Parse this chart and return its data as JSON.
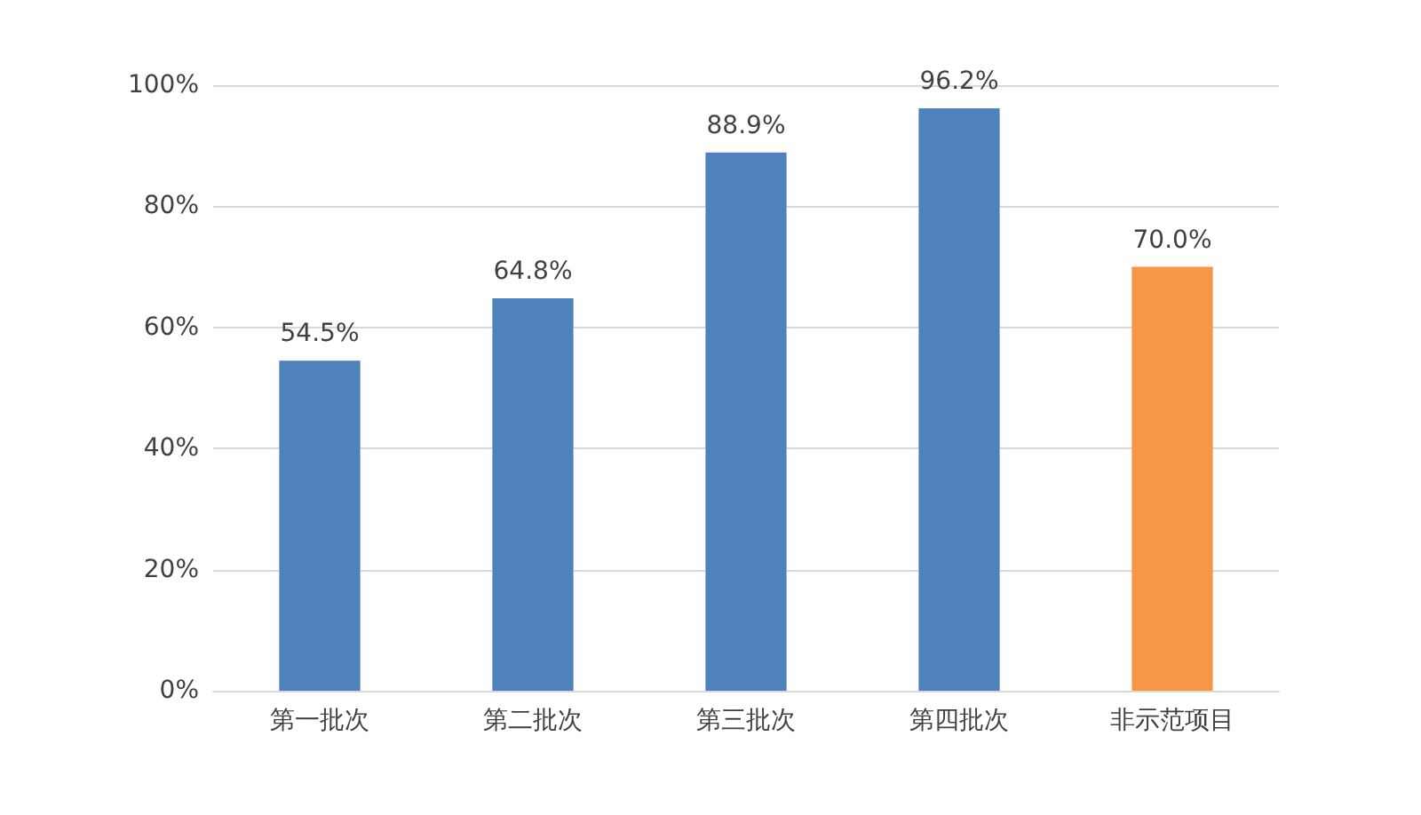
{
  "chart_data": {
    "type": "bar",
    "categories": [
      "第一批次",
      "第二批次",
      "第三批次",
      "第四批次",
      "非示范项目"
    ],
    "values": [
      54.5,
      64.8,
      88.9,
      96.2,
      70.0
    ],
    "colors": [
      "#4f81bd",
      "#4f81bd",
      "#4f81bd",
      "#4f81bd",
      "#f79646"
    ],
    "value_labels": [
      "54.5%",
      "64.8%",
      "88.9%",
      "96.2%",
      "70.0%"
    ],
    "ylim": [
      0,
      100
    ],
    "yticks": [
      {
        "value": 0,
        "label": "0%"
      },
      {
        "value": 20,
        "label": "20%"
      },
      {
        "value": 40,
        "label": "40%"
      },
      {
        "value": 60,
        "label": "60%"
      },
      {
        "value": 80,
        "label": "80%"
      },
      {
        "value": 100,
        "label": "100%"
      }
    ],
    "grid": "y"
  }
}
